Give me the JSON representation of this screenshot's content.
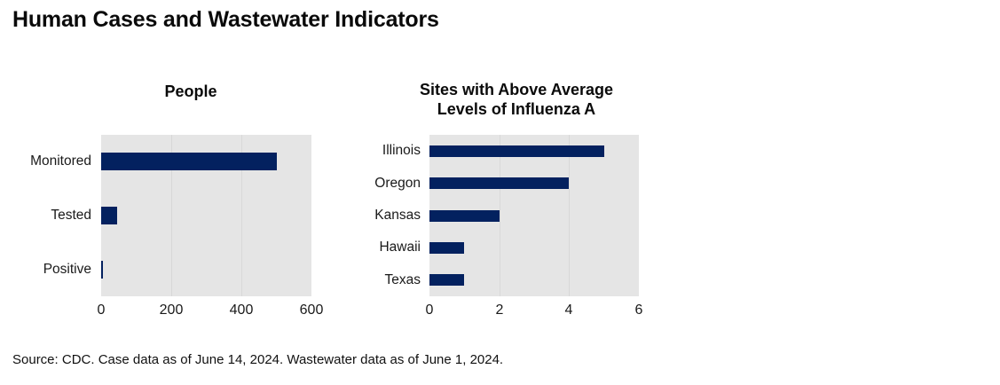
{
  "title": "Human Cases and Wastewater Indicators",
  "source": "Source: CDC. Case data as of June 14, 2024. Wastewater data as of June 1, 2024.",
  "colors": {
    "bar": "#03215f",
    "plot_background": "#e5e5e5",
    "gridline": "#d8d8d8",
    "text": "#1a1a1a"
  },
  "chart_data": [
    {
      "type": "bar",
      "orientation": "horizontal",
      "title_lines": [
        "People"
      ],
      "categories": [
        "Monitored",
        "Tested",
        "Positive"
      ],
      "values": [
        500,
        45,
        3
      ],
      "xlim": [
        0,
        600
      ],
      "xticks": [
        0,
        200,
        400,
        600
      ],
      "grid": true,
      "legend": "none"
    },
    {
      "type": "bar",
      "orientation": "horizontal",
      "title_lines": [
        "Sites with Above Average",
        "Levels of Influenza A"
      ],
      "categories": [
        "Illinois",
        "Oregon",
        "Kansas",
        "Hawaii",
        "Texas"
      ],
      "values": [
        5,
        4,
        2,
        1,
        1
      ],
      "xlim": [
        0,
        6
      ],
      "xticks": [
        0,
        2,
        4,
        6
      ],
      "grid": true,
      "legend": "none"
    }
  ]
}
